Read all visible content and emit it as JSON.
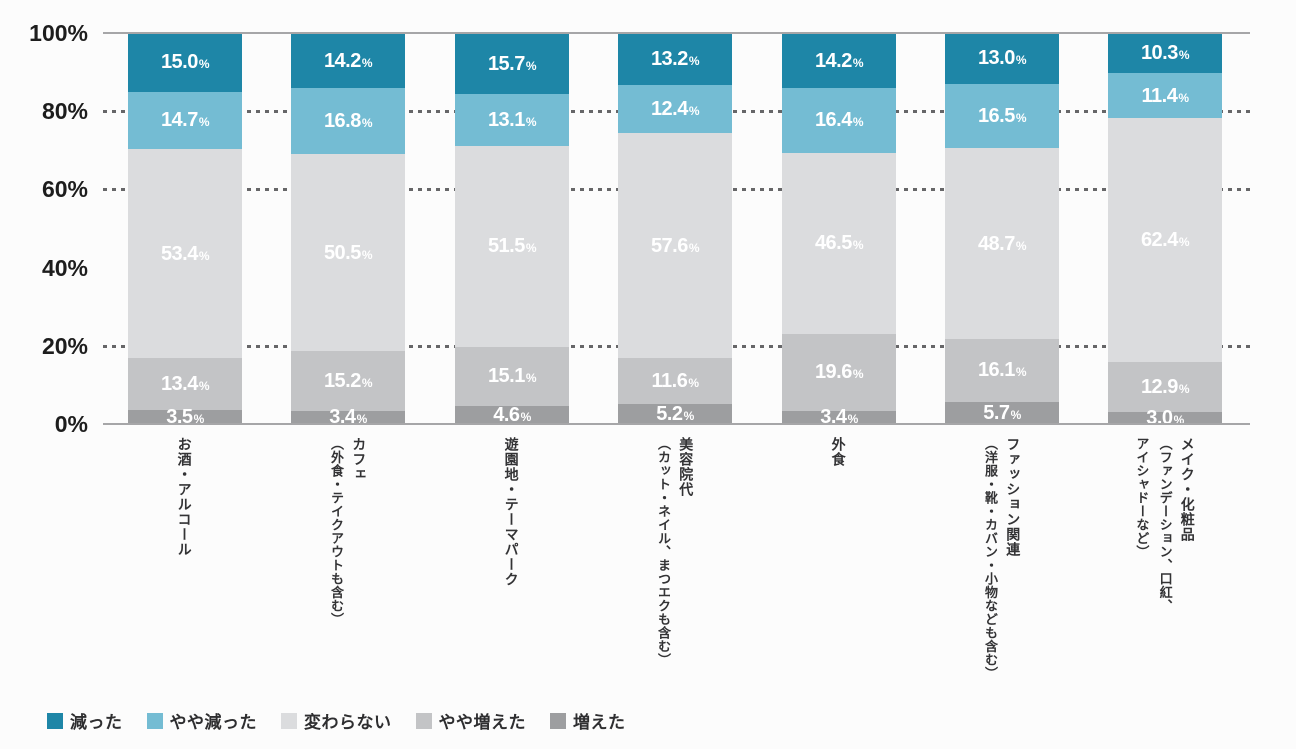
{
  "chart_data": {
    "type": "bar",
    "variant": "stacked-100-percent-column",
    "title": "",
    "unit": "%",
    "grid": "dashed-horizontal",
    "legend_position": "bottom-left",
    "value_label_color": "#ffffff",
    "categories": [
      {
        "name": "お酒・アルコール",
        "label_lines": [
          "お酒・アルコール"
        ]
      },
      {
        "name": "カフェ（外食・テイクアウトも含む）",
        "label_lines": [
          "カフェ",
          "（外食・テイクアウトも含む）"
        ]
      },
      {
        "name": "遊園地・テーマパーク",
        "label_lines": [
          "遊園地・テーマパーク"
        ]
      },
      {
        "name": "美容院代（カット・ネイル、まつエクも含む）",
        "label_lines": [
          "美容院代",
          "（カット・ネイル、まつエクも含む）"
        ]
      },
      {
        "name": "外食",
        "label_lines": [
          "外食"
        ]
      },
      {
        "name": "ファッション関連（洋服・靴・カバン・小物なども含む）",
        "label_lines": [
          "ファッション関連",
          "（洋服・靴・カバン・小物なども含む）"
        ]
      },
      {
        "name": "メイク・化粧品（ファンデーション、口紅、アイシャドーなど）",
        "label_lines": [
          "メイク・化粧品",
          "（ファンデーション、口紅、",
          "アイシャドーなど）"
        ]
      }
    ],
    "series": [
      {
        "name": "減った",
        "color": "#1e86a7",
        "values": [
          15.0,
          14.2,
          15.7,
          13.2,
          14.2,
          13.0,
          10.3
        ]
      },
      {
        "name": "やや減った",
        "color": "#74bcd3",
        "values": [
          14.7,
          16.8,
          13.1,
          12.4,
          16.4,
          16.5,
          11.4
        ]
      },
      {
        "name": "変わらない",
        "color": "#dbdcde",
        "values": [
          53.4,
          50.5,
          51.5,
          57.6,
          46.5,
          48.7,
          62.4
        ]
      },
      {
        "name": "やや増えた",
        "color": "#c3c4c6",
        "values": [
          13.4,
          15.2,
          15.1,
          11.6,
          19.6,
          16.1,
          12.9
        ]
      },
      {
        "name": "増えた",
        "color": "#9d9ea0",
        "values": [
          3.5,
          3.4,
          4.6,
          5.2,
          3.4,
          5.7,
          3.0
        ]
      }
    ],
    "y_axis": {
      "ylim": [
        0,
        100
      ],
      "ticks": [
        {
          "label": "100%",
          "value": 100
        },
        {
          "label": "80%",
          "value": 80
        },
        {
          "label": "60%",
          "value": 60
        },
        {
          "label": "40%",
          "value": 40
        },
        {
          "label": "20%",
          "value": 20
        },
        {
          "label": "0%",
          "value": 0
        }
      ],
      "grid_levels": [
        80,
        60,
        20
      ],
      "solid_levels": [
        100,
        0
      ]
    }
  }
}
